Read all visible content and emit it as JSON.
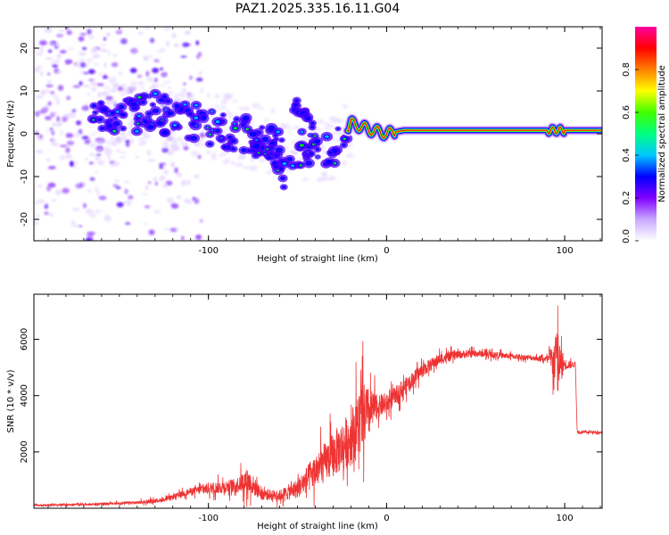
{
  "title": "PAZ1.2025.335.16.11.G04",
  "chart_data": [
    {
      "type": "heatmap",
      "name": "spectrogram",
      "xlabel": "Height of straight line (km)",
      "ylabel": "Frequency (Hz)",
      "xlim": [
        -198,
        121
      ],
      "ylim": [
        -25,
        25
      ],
      "xticks": [
        -100,
        0,
        100
      ],
      "yticks": [
        20,
        10,
        0,
        -10,
        -20
      ],
      "colorbar": {
        "label": "Normalized spectral amplitude",
        "range": [
          0.0,
          1.0
        ],
        "ticks": [
          0.0,
          0.2,
          0.4,
          0.6,
          0.8
        ],
        "tick_labels": [
          "0.0",
          "0.2",
          "0.4",
          "0.6",
          "0.8"
        ],
        "colormap": [
          "#ffffff",
          "#e6d8ff",
          "#9a50ff",
          "#5000ff",
          "#0000ff",
          "#00c8ff",
          "#00ff00",
          "#ffff00",
          "#ff0000",
          "#ff00ff"
        ]
      },
      "signal_track": [
        {
          "x": -165,
          "y": 3.5
        },
        {
          "x": -150,
          "y": 4
        },
        {
          "x": -140,
          "y": 4.5
        },
        {
          "x": -130,
          "y": 5
        },
        {
          "x": -120,
          "y": 4
        },
        {
          "x": -110,
          "y": 3
        },
        {
          "x": -100,
          "y": 2
        },
        {
          "x": -90,
          "y": 1
        },
        {
          "x": -80,
          "y": 0
        },
        {
          "x": -70,
          "y": -1
        },
        {
          "x": -60,
          "y": -3
        },
        {
          "x": -50,
          "y": -4
        },
        {
          "x": -40,
          "y": -4
        },
        {
          "x": -30,
          "y": -3
        },
        {
          "x": -25,
          "y": -2
        },
        {
          "x": -20,
          "y": 2.5
        },
        {
          "x": -10,
          "y": 1
        },
        {
          "x": 0,
          "y": 0
        },
        {
          "x": 10,
          "y": 0.8
        },
        {
          "x": 121,
          "y": 0.8
        }
      ],
      "branch_track": [
        {
          "x": -75,
          "y": -2
        },
        {
          "x": -65,
          "y": -6
        },
        {
          "x": -57,
          "y": -11
        }
      ],
      "upper_track": [
        {
          "x": -52,
          "y": 7
        },
        {
          "x": -45,
          "y": 4
        },
        {
          "x": -38,
          "y": -1
        }
      ]
    },
    {
      "type": "line",
      "name": "snr",
      "xlabel": "Height of straight line (km)",
      "ylabel": "SNR (10 * v/v)",
      "xlim": [
        -198,
        121
      ],
      "ylim": [
        0,
        7600
      ],
      "xticks": [
        -100,
        0,
        100
      ],
      "yticks": [
        2000,
        4000,
        6000
      ],
      "color": "#ee3333",
      "series": [
        {
          "name": "SNR",
          "points": [
            {
              "x": -198,
              "y": 100,
              "noise": 50
            },
            {
              "x": -160,
              "y": 150,
              "noise": 80
            },
            {
              "x": -140,
              "y": 200,
              "noise": 120
            },
            {
              "x": -125,
              "y": 300,
              "noise": 150
            },
            {
              "x": -110,
              "y": 600,
              "noise": 250
            },
            {
              "x": -100,
              "y": 700,
              "noise": 400
            },
            {
              "x": -85,
              "y": 800,
              "noise": 500
            },
            {
              "x": -78,
              "y": 1000,
              "noise": 900
            },
            {
              "x": -70,
              "y": 500,
              "noise": 400
            },
            {
              "x": -60,
              "y": 450,
              "noise": 400
            },
            {
              "x": -50,
              "y": 700,
              "noise": 700
            },
            {
              "x": -40,
              "y": 1300,
              "noise": 1200
            },
            {
              "x": -30,
              "y": 1900,
              "noise": 1600
            },
            {
              "x": -20,
              "y": 2500,
              "noise": 2000
            },
            {
              "x": -14,
              "y": 3200,
              "noise": 2600
            },
            {
              "x": -5,
              "y": 3600,
              "noise": 800
            },
            {
              "x": 0,
              "y": 3700,
              "noise": 700
            },
            {
              "x": 10,
              "y": 4300,
              "noise": 600
            },
            {
              "x": 20,
              "y": 4900,
              "noise": 500
            },
            {
              "x": 30,
              "y": 5300,
              "noise": 400
            },
            {
              "x": 40,
              "y": 5450,
              "noise": 300
            },
            {
              "x": 50,
              "y": 5500,
              "noise": 250
            },
            {
              "x": 70,
              "y": 5400,
              "noise": 200
            },
            {
              "x": 90,
              "y": 5300,
              "noise": 200
            },
            {
              "x": 96,
              "y": 5200,
              "noise": 2200
            },
            {
              "x": 100,
              "y": 5100,
              "noise": 400
            },
            {
              "x": 106,
              "y": 5100,
              "noise": 150
            },
            {
              "x": 107,
              "y": 2700,
              "noise": 100
            },
            {
              "x": 121,
              "y": 2700,
              "noise": 80
            }
          ]
        }
      ]
    }
  ]
}
